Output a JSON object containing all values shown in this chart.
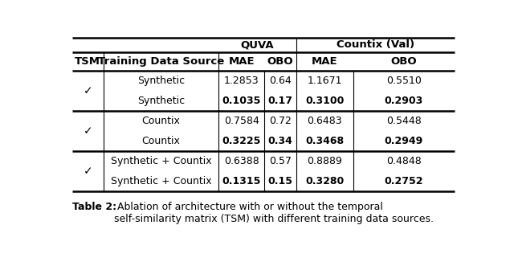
{
  "title_bold": "Table 2:",
  "title_rest": " Ablation of architecture with or without the temporal\nself-similarity matrix (TSM) with different training data sources.",
  "rows": [
    [
      "",
      "Synthetic",
      "1.2853",
      "0.64",
      "1.1671",
      "0.5510",
      false
    ],
    [
      "✓",
      "Synthetic",
      "0.1035",
      "0.17",
      "0.3100",
      "0.2903",
      true
    ],
    [
      "",
      "Countix",
      "0.7584",
      "0.72",
      "0.6483",
      "0.5448",
      false
    ],
    [
      "✓",
      "Countix",
      "0.3225",
      "0.34",
      "0.3468",
      "0.2949",
      true
    ],
    [
      "",
      "Synthetic + Countix",
      "0.6388",
      "0.57",
      "0.8889",
      "0.4848",
      false
    ],
    [
      "✓",
      "Synthetic + Countix",
      "0.1315",
      "0.15",
      "0.3280",
      "0.2752",
      true
    ]
  ],
  "background_color": "#ffffff"
}
